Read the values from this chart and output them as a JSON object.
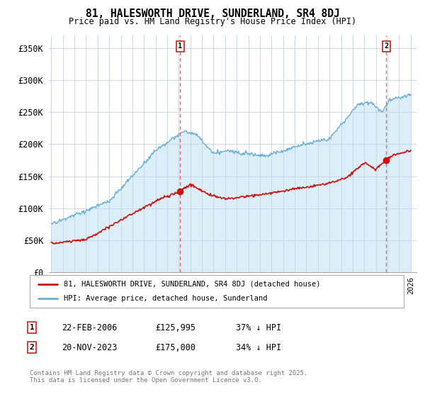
{
  "title": "81, HALESWORTH DRIVE, SUNDERLAND, SR4 8DJ",
  "subtitle": "Price paid vs. HM Land Registry's House Price Index (HPI)",
  "ylabel_ticks": [
    "£0",
    "£50K",
    "£100K",
    "£150K",
    "£200K",
    "£250K",
    "£300K",
    "£350K"
  ],
  "ytick_vals": [
    0,
    50000,
    100000,
    150000,
    200000,
    250000,
    300000,
    350000
  ],
  "ylim": [
    0,
    370000
  ],
  "xlim_start": 1994.8,
  "xlim_end": 2026.5,
  "sale1_date": 2006.13,
  "sale1_price": 125995,
  "sale1_label": "1",
  "sale2_date": 2023.89,
  "sale2_price": 175000,
  "sale2_label": "2",
  "hpi_color": "#6aaed6",
  "hpi_fill_color": "#dceef8",
  "price_color": "#cc1111",
  "dashed_color": "#cc6666",
  "legend_line1": "81, HALESWORTH DRIVE, SUNDERLAND, SR4 8DJ (detached house)",
  "legend_line2": "HPI: Average price, detached house, Sunderland",
  "table_row1": [
    "1",
    "22-FEB-2006",
    "£125,995",
    "37% ↓ HPI"
  ],
  "table_row2": [
    "2",
    "20-NOV-2023",
    "£175,000",
    "34% ↓ HPI"
  ],
  "footnote": "Contains HM Land Registry data © Crown copyright and database right 2025.\nThis data is licensed under the Open Government Licence v3.0.",
  "background_color": "#ffffff",
  "grid_color": "#c8d8e8"
}
